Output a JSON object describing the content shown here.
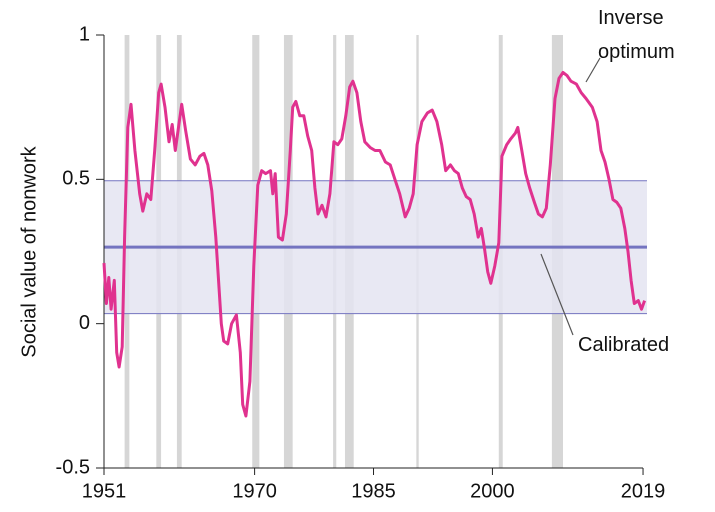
{
  "chart_data": {
    "type": "line",
    "y_label": "Social value of nonwork",
    "xlim": [
      1951,
      2019.5
    ],
    "ylim": [
      -0.5,
      1
    ],
    "xticks": [
      1951,
      1970,
      1985,
      2000,
      2019
    ],
    "yticks": [
      -0.5,
      0,
      0.5,
      1
    ],
    "shaded_periods": [
      [
        1953.6,
        1954.2
      ],
      [
        1957.6,
        1958.2
      ],
      [
        1960.2,
        1960.8
      ],
      [
        1969.7,
        1970.6
      ],
      [
        1973.7,
        1974.8
      ],
      [
        1979.9,
        1980.3
      ],
      [
        1981.4,
        1982.5
      ],
      [
        1990.4,
        1990.7
      ],
      [
        2000.8,
        2001.3
      ],
      [
        2007.5,
        2008.9
      ]
    ],
    "shade_color": "#d6d6d6",
    "band": [
      0.035,
      0.495
    ],
    "band_color": "#e4e4f1",
    "calibrated": {
      "name": "Calibrated",
      "value": 0.265,
      "color": "#7474c0"
    },
    "x": [
      1951.0,
      1951.3,
      1951.6,
      1951.9,
      1952.3,
      1952.6,
      1952.9,
      1953.3,
      1953.6,
      1954.0,
      1954.4,
      1954.9,
      1955.5,
      1955.9,
      1956.4,
      1956.9,
      1957.4,
      1957.9,
      1958.2,
      1958.7,
      1959.2,
      1959.6,
      1960.0,
      1960.6,
      1960.8,
      1961.3,
      1961.9,
      1962.5,
      1963.1,
      1963.6,
      1964.1,
      1964.6,
      1965.1,
      1965.8,
      1966.1,
      1966.6,
      1967.1,
      1967.7,
      1968.2,
      1968.5,
      1968.9,
      1969.4,
      1969.9,
      1970.4,
      1970.9,
      1971.4,
      1972.0,
      1972.3,
      1972.6,
      1973.0,
      1973.5,
      1974.0,
      1974.5,
      1974.8,
      1975.2,
      1975.7,
      1976.2,
      1976.7,
      1977.2,
      1977.6,
      1978.0,
      1978.5,
      1979.0,
      1979.5,
      1980.0,
      1980.5,
      1981.0,
      1981.5,
      1982.0,
      1982.4,
      1982.9,
      1983.4,
      1983.9,
      1984.6,
      1985.2,
      1985.8,
      1986.5,
      1987.1,
      1987.7,
      1988.3,
      1989.0,
      1989.5,
      1990.0,
      1990.5,
      1991.1,
      1991.8,
      1992.4,
      1993.0,
      1993.6,
      1994.1,
      1994.7,
      1995.2,
      1995.7,
      1996.2,
      1996.7,
      1997.2,
      1997.7,
      1998.2,
      1998.6,
      1999.0,
      1999.4,
      1999.8,
      2000.3,
      2000.8,
      2001.2,
      2001.8,
      2002.3,
      2002.9,
      2003.2,
      2003.7,
      2004.2,
      2004.7,
      2005.3,
      2005.8,
      2006.3,
      2006.8,
      2007.3,
      2007.9,
      2008.4,
      2008.9,
      2009.4,
      2009.9,
      2010.6,
      2011.2,
      2011.8,
      2012.6,
      2013.2,
      2013.7,
      2014.2,
      2014.7,
      2015.2,
      2015.7,
      2016.2,
      2016.7,
      2017.1,
      2017.5,
      2017.9,
      2018.4,
      2018.8,
      2019.2
    ],
    "series": [
      {
        "name": "Inverse optimum",
        "color": "#e0328f",
        "values": [
          0.21,
          0.07,
          0.16,
          0.05,
          0.15,
          -0.1,
          -0.15,
          -0.08,
          0.3,
          0.68,
          0.76,
          0.6,
          0.45,
          0.39,
          0.45,
          0.43,
          0.6,
          0.8,
          0.83,
          0.75,
          0.63,
          0.69,
          0.6,
          0.72,
          0.76,
          0.67,
          0.57,
          0.55,
          0.58,
          0.59,
          0.55,
          0.46,
          0.3,
          0.0,
          -0.06,
          -0.07,
          0.0,
          0.03,
          -0.1,
          -0.28,
          -0.32,
          -0.2,
          0.2,
          0.48,
          0.53,
          0.52,
          0.53,
          0.45,
          0.52,
          0.3,
          0.29,
          0.38,
          0.6,
          0.75,
          0.77,
          0.72,
          0.72,
          0.65,
          0.6,
          0.47,
          0.38,
          0.41,
          0.37,
          0.45,
          0.63,
          0.62,
          0.64,
          0.72,
          0.82,
          0.84,
          0.8,
          0.7,
          0.63,
          0.61,
          0.6,
          0.6,
          0.56,
          0.55,
          0.5,
          0.45,
          0.37,
          0.4,
          0.45,
          0.62,
          0.7,
          0.73,
          0.74,
          0.7,
          0.62,
          0.53,
          0.55,
          0.53,
          0.52,
          0.47,
          0.44,
          0.43,
          0.38,
          0.3,
          0.33,
          0.26,
          0.18,
          0.14,
          0.2,
          0.28,
          0.58,
          0.62,
          0.64,
          0.66,
          0.68,
          0.6,
          0.52,
          0.47,
          0.42,
          0.38,
          0.37,
          0.4,
          0.55,
          0.78,
          0.85,
          0.87,
          0.86,
          0.84,
          0.83,
          0.8,
          0.78,
          0.75,
          0.7,
          0.6,
          0.56,
          0.5,
          0.43,
          0.42,
          0.4,
          0.33,
          0.25,
          0.15,
          0.07,
          0.08,
          0.05,
          0.08
        ]
      }
    ]
  }
}
